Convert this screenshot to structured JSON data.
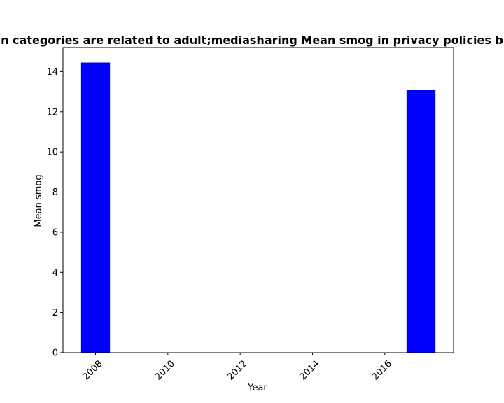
{
  "chart_data": {
    "type": "bar",
    "title": "Mean smog in privacy policies by year (n categories are related to adult;mediasharing Mean smog in privacy policies by year)",
    "title_visible": "n categories are related to adult;mediasharing Mean smog in privacy policies b",
    "xlabel": "Year",
    "ylabel": "Mean smog",
    "x": [
      2008,
      2017
    ],
    "values": [
      14.45,
      13.1
    ],
    "xlim": [
      2007.1,
      2017.9
    ],
    "ylim": [
      0,
      15.2
    ],
    "x_ticks": [
      2008,
      2010,
      2012,
      2014,
      2016
    ],
    "y_ticks": [
      0,
      2,
      4,
      6,
      8,
      10,
      12,
      14
    ],
    "bar_color": "#0000ff",
    "grid": false,
    "legend": "none"
  }
}
